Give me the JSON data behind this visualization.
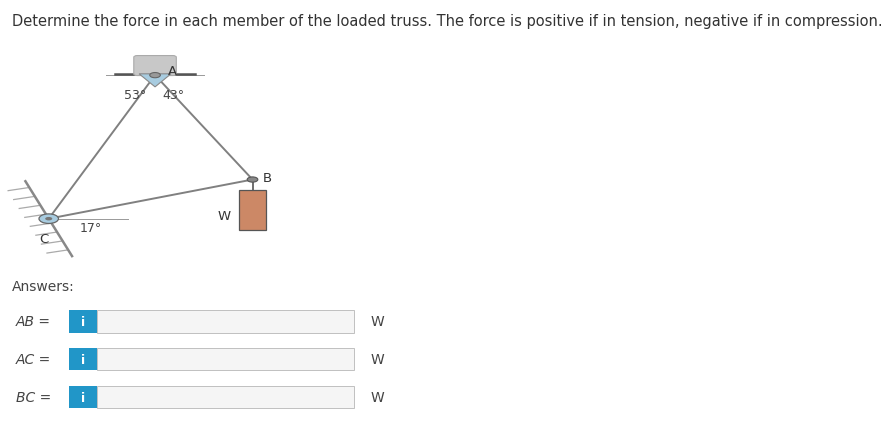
{
  "title": "Determine the force in each member of the loaded truss. The force is positive if in tension, negative if in compression.",
  "title_fontsize": 10.5,
  "bg_color": "#ffffff",
  "A": [
    0.175,
    0.825
  ],
  "B": [
    0.285,
    0.585
  ],
  "C": [
    0.055,
    0.495
  ],
  "angle_53": "53°",
  "angle_43": "43°",
  "angle_17": "17°",
  "label_A": "A",
  "label_B": "B",
  "label_C": "C",
  "label_W": "W",
  "answers_label": "Answers:",
  "rows": [
    {
      "label": "AB =",
      "unit": "W"
    },
    {
      "label": "AC =",
      "unit": "W"
    },
    {
      "label": "BC =",
      "unit": "W"
    }
  ],
  "icon_bg": "#2196c8",
  "icon_text": "i",
  "line_color": "#808080",
  "weight_color": "#cc8866",
  "support_tri_color": "#a8cce0",
  "roller_color": "#c8c8c8"
}
